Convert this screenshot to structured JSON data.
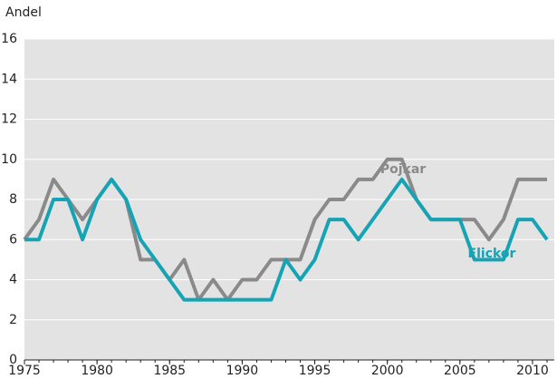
{
  "chart_data": {
    "type": "line",
    "y_label": "Andel",
    "x": [
      1975,
      1976,
      1977,
      1978,
      1979,
      1980,
      1981,
      1982,
      1983,
      1984,
      1985,
      1986,
      1987,
      1988,
      1989,
      1990,
      1991,
      1992,
      1993,
      1994,
      1995,
      1996,
      1997,
      1998,
      1999,
      2000,
      2001,
      2002,
      2003,
      2004,
      2005,
      2006,
      2007,
      2008,
      2009,
      2010,
      2011
    ],
    "series": [
      {
        "name": "Pojkar",
        "color": "#8a8a8a",
        "values": [
          6,
          7,
          9,
          8,
          7,
          8,
          9,
          8,
          5,
          5,
          4,
          5,
          3,
          4,
          3,
          4,
          4,
          5,
          5,
          5,
          7,
          8,
          8,
          9,
          9,
          10,
          10,
          8,
          7,
          7,
          7,
          7,
          6,
          7,
          9,
          9,
          9
        ]
      },
      {
        "name": "Flickor",
        "color": "#16a3b4",
        "values": [
          6,
          6,
          8,
          8,
          6,
          8,
          9,
          8,
          6,
          5,
          4,
          3,
          3,
          3,
          3,
          3,
          3,
          3,
          5,
          4,
          5,
          7,
          7,
          6,
          7,
          8,
          9,
          8,
          7,
          7,
          7,
          5,
          5,
          5,
          7,
          7,
          6
        ]
      }
    ],
    "xlim": [
      1975,
      2011.5
    ],
    "xticks": [
      1975,
      1980,
      1985,
      1990,
      1995,
      2000,
      2005,
      2010
    ],
    "ylim": [
      0,
      16
    ],
    "yticks": [
      0,
      2,
      4,
      6,
      8,
      10,
      12,
      14,
      16
    ],
    "grid": true
  }
}
